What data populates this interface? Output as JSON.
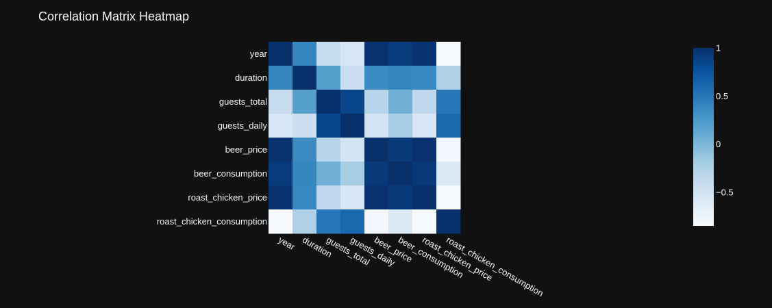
{
  "chart_data": {
    "type": "heatmap",
    "title": "Correlation Matrix Heatmap",
    "x": [
      "year",
      "duration",
      "guests_total",
      "guests_daily",
      "beer_price",
      "beer_consumption",
      "roast_chicken_price",
      "roast_chicken_consumption"
    ],
    "y": [
      "year",
      "duration",
      "guests_total",
      "guests_daily",
      "beer_price",
      "beer_consumption",
      "roast_chicken_price",
      "roast_chicken_consumption"
    ],
    "z": [
      [
        1.0,
        0.4,
        -0.4,
        -0.55,
        0.98,
        0.92,
        0.97,
        -0.85
      ],
      [
        0.4,
        1.0,
        0.2,
        -0.45,
        0.35,
        0.4,
        0.38,
        -0.25
      ],
      [
        -0.4,
        0.2,
        1.0,
        0.85,
        -0.3,
        0.05,
        -0.35,
        0.5
      ],
      [
        -0.55,
        -0.45,
        0.85,
        1.0,
        -0.5,
        -0.2,
        -0.55,
        0.6
      ],
      [
        0.98,
        0.35,
        -0.3,
        -0.5,
        1.0,
        0.94,
        0.99,
        -0.8
      ],
      [
        0.92,
        0.4,
        0.05,
        -0.2,
        0.94,
        1.0,
        0.93,
        -0.6
      ],
      [
        0.97,
        0.38,
        -0.35,
        -0.55,
        0.99,
        0.93,
        1.0,
        -0.82
      ],
      [
        -0.85,
        -0.25,
        0.5,
        0.6,
        -0.8,
        -0.6,
        -0.82,
        1.0
      ]
    ],
    "zmin": -0.85,
    "zmax": 1.0,
    "colorscale": "Blues",
    "colorbar": {
      "ticks": [
        1,
        0.5,
        0,
        -0.5
      ],
      "tick_labels": [
        "1",
        "0.5",
        "0",
        "−0.5"
      ]
    },
    "grid": false
  }
}
